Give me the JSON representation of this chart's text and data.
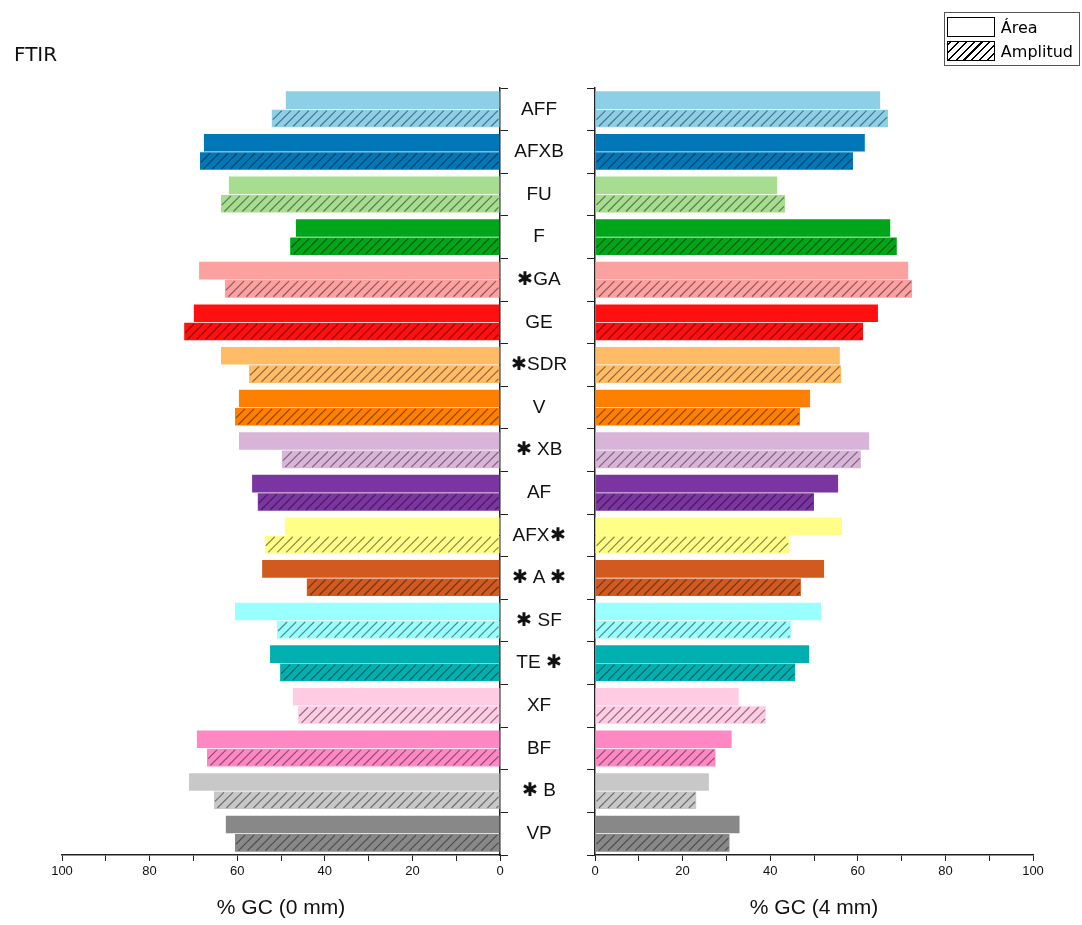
{
  "chart_data": [
    {
      "type": "bar",
      "title": "FTIR",
      "orientation": "horizontal",
      "xlabel": "% GC (0 mm)",
      "categories": [
        "AFF",
        "AFXB",
        "FU",
        "F",
        "✱GA",
        "GE",
        "✱SDR",
        "V",
        "✱ XB",
        "AF",
        "AFX✱",
        "✱ A ✱",
        "✱ SF",
        "TE ✱",
        "XF",
        "BF",
        "✱ B",
        "VP"
      ],
      "xlim": [
        100,
        0
      ],
      "xticks": [
        100,
        {
          "value": 90,
          "label": null
        },
        80,
        {
          "value": 70,
          "label": null
        },
        60,
        {
          "value": 50,
          "label": null
        },
        40,
        {
          "value": 30,
          "label": null
        },
        20,
        {
          "value": 10,
          "label": null
        },
        0
      ],
      "series": [
        {
          "colors": [
            "#8ecfe8",
            "#0077b6",
            "#a6dd8e",
            "#00a51a",
            "#fca0a0",
            "#ff1010",
            "#ffbb66",
            "#ff7f00",
            "#d8b4d8",
            "#7a35a0",
            "#ffff88",
            "#d05a20",
            "#99ffff",
            "#00b0b0",
            "#ffcce4",
            "#ff88c4",
            "#c8c8c8",
            "#888888"
          ],
          "values": [
            48.9,
            67.6,
            61.9,
            46.6,
            68.7,
            69.9,
            63.7,
            59.6,
            59.6,
            56.6,
            49.1,
            54.3,
            60.5,
            52.5,
            47.3,
            69.2,
            71.0,
            62.6
          ]
        },
        {
          "colors": [
            "#8ecfe8",
            "#0077b6",
            "#a6dd8e",
            "#00a51a",
            "#fca0a0",
            "#ff1010",
            "#ffbb66",
            "#ff7f00",
            "#d8b4d8",
            "#7a35a0",
            "#ffff88",
            "#d05a20",
            "#99ffff",
            "#00b0b0",
            "#ffcce4",
            "#ff88c4",
            "#c8c8c8",
            "#888888"
          ],
          "values": [
            52.1,
            68.5,
            63.7,
            47.9,
            62.8,
            72.1,
            57.3,
            60.5,
            49.8,
            55.3,
            53.7,
            44.1,
            50.9,
            50.2,
            46.1,
            66.9,
            65.3,
            60.5
          ]
        }
      ]
    },
    {
      "type": "bar",
      "orientation": "horizontal",
      "xlabel": "% GC (4 mm)",
      "tick_labels": "x",
      "legend": "top right",
      "xlim": [
        0,
        100
      ],
      "xticks": [
        0,
        {
          "value": 10,
          "label": null
        },
        20,
        {
          "value": 30,
          "label": null
        },
        40,
        {
          "value": 50,
          "label": null
        },
        60,
        {
          "value": 70,
          "label": null
        },
        80,
        {
          "value": 90,
          "label": null
        },
        100
      ],
      "series": [
        {
          "name": "Área",
          "colors": [
            "#8ecfe8",
            "#0077b6",
            "#a6dd8e",
            "#00a51a",
            "#fca0a0",
            "#ff1010",
            "#ffbb66",
            "#ff7f00",
            "#d8b4d8",
            "#7a35a0",
            "#ffff88",
            "#d05a20",
            "#99ffff",
            "#00b0b0",
            "#ffcce4",
            "#ff88c4",
            "#c8c8c8",
            "#888888"
          ],
          "values": [
            65.1,
            61.6,
            41.6,
            67.4,
            71.5,
            64.6,
            55.9,
            49.1,
            62.6,
            55.5,
            56.4,
            52.3,
            51.6,
            48.9,
            32.8,
            31.2,
            26.0,
            33.0
          ]
        },
        {
          "name": "Amplitud",
          "colors": [
            "#8ecfe8",
            "#0077b6",
            "#a6dd8e",
            "#00a51a",
            "#fca0a0",
            "#ff1010",
            "#ffbb66",
            "#ff7f00",
            "#d8b4d8",
            "#7a35a0",
            "#ffff88",
            "#d05a20",
            "#99ffff",
            "#00b0b0",
            "#ffcce4",
            "#ff88c4",
            "#c8c8c8",
            "#888888"
          ],
          "values": [
            66.9,
            58.9,
            43.4,
            68.9,
            72.4,
            61.2,
            56.2,
            46.8,
            60.7,
            50.0,
            44.3,
            47.0,
            44.7,
            45.7,
            39.0,
            27.5,
            23.1,
            30.7
          ]
        }
      ]
    }
  ]
}
